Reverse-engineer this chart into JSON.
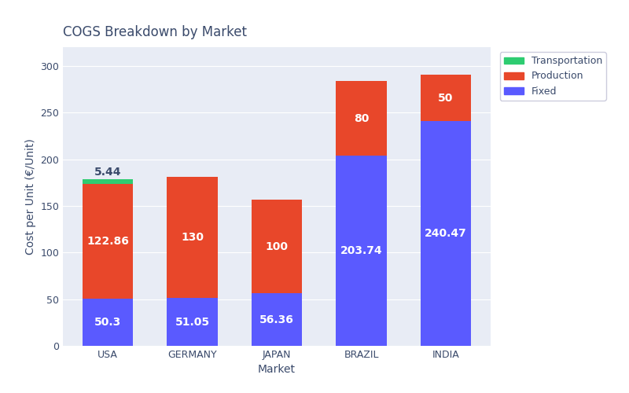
{
  "title": "COGS Breakdown by Market",
  "xlabel": "Market",
  "ylabel": "Cost per Unit (€/Unit)",
  "markets": [
    "USA",
    "GERMANY",
    "JAPAN",
    "BRAZIL",
    "INDIA"
  ],
  "fixed": [
    50.3,
    51.05,
    56.36,
    203.74,
    240.47
  ],
  "production": [
    122.86,
    130,
    100,
    80,
    50
  ],
  "transportation": [
    5.44,
    0,
    0,
    0,
    0
  ],
  "colors": {
    "fixed": "#5a5aff",
    "production": "#e8472a",
    "transportation": "#2ecc71"
  },
  "ylim": [
    0,
    320
  ],
  "yticks": [
    0,
    50,
    100,
    150,
    200,
    250,
    300
  ],
  "background_color": "#e8ecf5",
  "figure_background": "#ffffff",
  "title_color": "#3a4a6b",
  "label_color": "#3a4a6b",
  "tick_color": "#3a4a6b",
  "bar_width": 0.6,
  "title_fontsize": 12,
  "axis_fontsize": 10,
  "tick_fontsize": 9,
  "annotation_fontsize": 10,
  "annotation_color": "#ffffff",
  "trans_annotation_color": "#3a4a6b"
}
